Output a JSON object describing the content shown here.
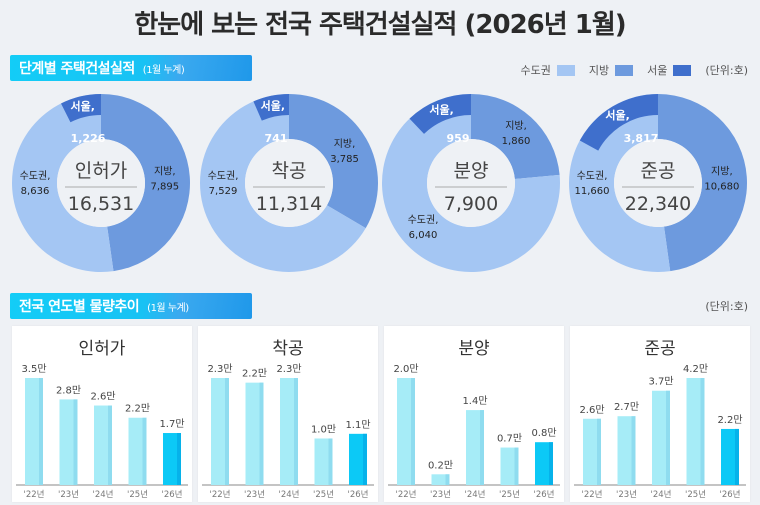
{
  "header": {
    "title": "한눈에 보는 전국 주택건설실적 (2026년 1월)"
  },
  "section1": {
    "title": "단계별 주택건설실적",
    "subtitle": "(1월 누계)",
    "legend": [
      {
        "label": "수도권",
        "color": "#a4c6f3"
      },
      {
        "label": "지방",
        "color": "#6d9ade"
      },
      {
        "label": "서울",
        "color": "#3f6fcc"
      }
    ],
    "unit": "(단위:호)"
  },
  "section2": {
    "title": "전국 연도별 물량추이",
    "subtitle": "(1월 누계)",
    "unit": "(단위:호)"
  },
  "colors": {
    "capital": "#a4c6f3",
    "local": "#6d9ade",
    "seoul": "#3f6fcc",
    "bar": "#a6ecf7",
    "bar_shade": "#8fdcef",
    "bar_current": "#0cc9f6",
    "bar_current_shade": "#06b2ea"
  },
  "chart_data": [
    {
      "type": "pie",
      "title": "인허가",
      "total": "16,531",
      "slices": [
        {
          "label": "지방",
          "value": 7895,
          "display": "7,895"
        },
        {
          "label": "수도권",
          "value": 8636,
          "display": "8,636"
        },
        {
          "label": "서울",
          "value": 1226,
          "display": "1,226",
          "subset_of": "수도권"
        }
      ]
    },
    {
      "type": "pie",
      "title": "착공",
      "total": "11,314",
      "slices": [
        {
          "label": "지방",
          "value": 3785,
          "display": "3,785"
        },
        {
          "label": "수도권",
          "value": 7529,
          "display": "7,529"
        },
        {
          "label": "서울",
          "value": 741,
          "display": "741",
          "subset_of": "수도권"
        }
      ]
    },
    {
      "type": "pie",
      "title": "분양",
      "total": "7,900",
      "slices": [
        {
          "label": "지방",
          "value": 1860,
          "display": "1,860"
        },
        {
          "label": "수도권",
          "value": 6040,
          "display": "6,040"
        },
        {
          "label": "서울",
          "value": 959,
          "display": "959",
          "subset_of": "수도권"
        }
      ]
    },
    {
      "type": "pie",
      "title": "준공",
      "total": "22,340",
      "slices": [
        {
          "label": "지방",
          "value": 10680,
          "display": "10,680"
        },
        {
          "label": "수도권",
          "value": 11660,
          "display": "11,660"
        },
        {
          "label": "서울",
          "value": 3817,
          "display": "3,817",
          "subset_of": "수도권"
        }
      ]
    },
    {
      "type": "bar",
      "title": "인허가",
      "categories": [
        "'22년",
        "'23년",
        "'24년",
        "'25년",
        "'26년"
      ],
      "values": [
        3.5,
        2.8,
        2.6,
        2.2,
        1.7
      ],
      "labels": [
        "3.5만",
        "2.8만",
        "2.6만",
        "2.2만",
        "1.7만"
      ],
      "unit": "만 호",
      "highlight_index": 4
    },
    {
      "type": "bar",
      "title": "착공",
      "categories": [
        "'22년",
        "'23년",
        "'24년",
        "'25년",
        "'26년"
      ],
      "values": [
        2.3,
        2.2,
        2.3,
        1.0,
        1.1
      ],
      "labels": [
        "2.3만",
        "2.2만",
        "2.3만",
        "1.0만",
        "1.1만"
      ],
      "unit": "만 호",
      "highlight_index": 4
    },
    {
      "type": "bar",
      "title": "분양",
      "categories": [
        "'22년",
        "'23년",
        "'24년",
        "'25년",
        "'26년"
      ],
      "values": [
        2.0,
        0.2,
        1.4,
        0.7,
        0.8
      ],
      "labels": [
        "2.0만",
        "0.2만",
        "1.4만",
        "0.7만",
        "0.8만"
      ],
      "unit": "만 호",
      "highlight_index": 4
    },
    {
      "type": "bar",
      "title": "준공",
      "categories": [
        "'22년",
        "'23년",
        "'24년",
        "'25년",
        "'26년"
      ],
      "values": [
        2.6,
        2.7,
        3.7,
        4.2,
        2.2
      ],
      "labels": [
        "2.6만",
        "2.7만",
        "3.7만",
        "4.2만",
        "2.2만"
      ],
      "unit": "만 호",
      "highlight_index": 4
    }
  ]
}
